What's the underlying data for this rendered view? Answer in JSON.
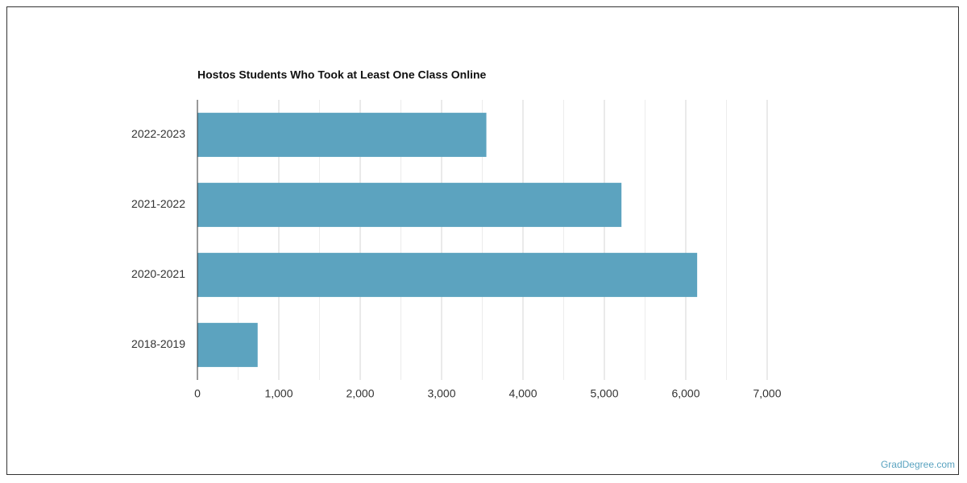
{
  "chart_data": {
    "type": "bar",
    "orientation": "horizontal",
    "title": "Hostos Students Who Took at Least One Class Online",
    "categories": [
      "2022-2023",
      "2021-2022",
      "2020-2021",
      "2018-2019"
    ],
    "values": [
      3550,
      5210,
      6140,
      740
    ],
    "color": "#5ca3bf",
    "xlim": [
      0,
      7000
    ],
    "xticks": [
      0,
      {
        "value": 1000,
        "label": "1,000"
      },
      {
        "value": 2000,
        "label": "2,000"
      },
      {
        "value": 3000,
        "label": "3,000"
      },
      {
        "value": 4000,
        "label": "4,000"
      },
      {
        "value": 5000,
        "label": "5,000"
      },
      {
        "value": 6000,
        "label": "6,000"
      },
      {
        "value": 7000,
        "label": "7,000"
      }
    ],
    "minor_xticks": [
      500,
      1500,
      2500,
      3500,
      4500,
      5500,
      6500
    ],
    "grid": true,
    "watermark": "GradDegree.com"
  }
}
